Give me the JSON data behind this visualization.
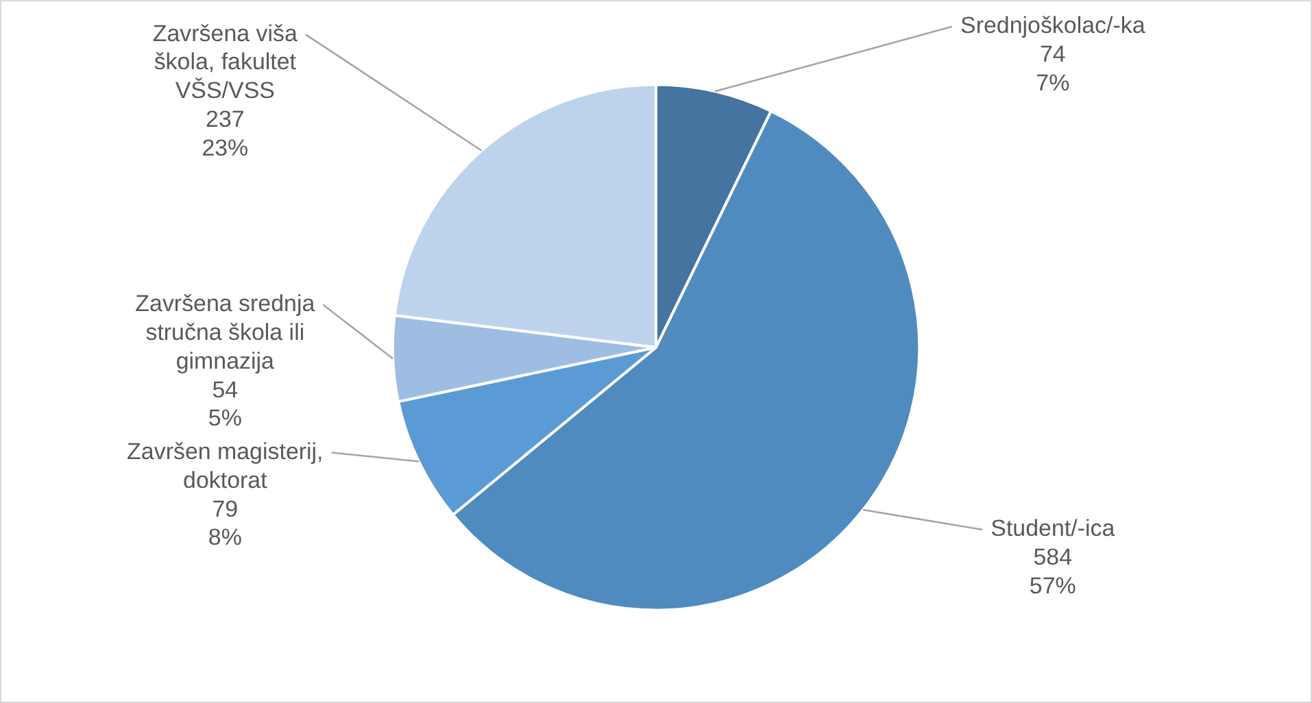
{
  "chart_data": {
    "type": "pie",
    "categories": [
      "Srednjoškolac/-ka",
      "Student/-ica",
      "Završen magisterij, doktorat",
      "Završena srednja stručna škola ili gimnazija",
      "Završena viša škola, fakultet VŠS/VSS"
    ],
    "values": [
      74,
      584,
      79,
      54,
      237
    ],
    "colors": [
      "#44749f",
      "#4f8bbf",
      "#5b9bd5",
      "#9dbde3",
      "#bdd3ec"
    ],
    "value_labels": [
      "74\n7%",
      "584\n57%",
      "79\n8%",
      "54\n5%",
      "237\n23%"
    ],
    "legend": false
  }
}
